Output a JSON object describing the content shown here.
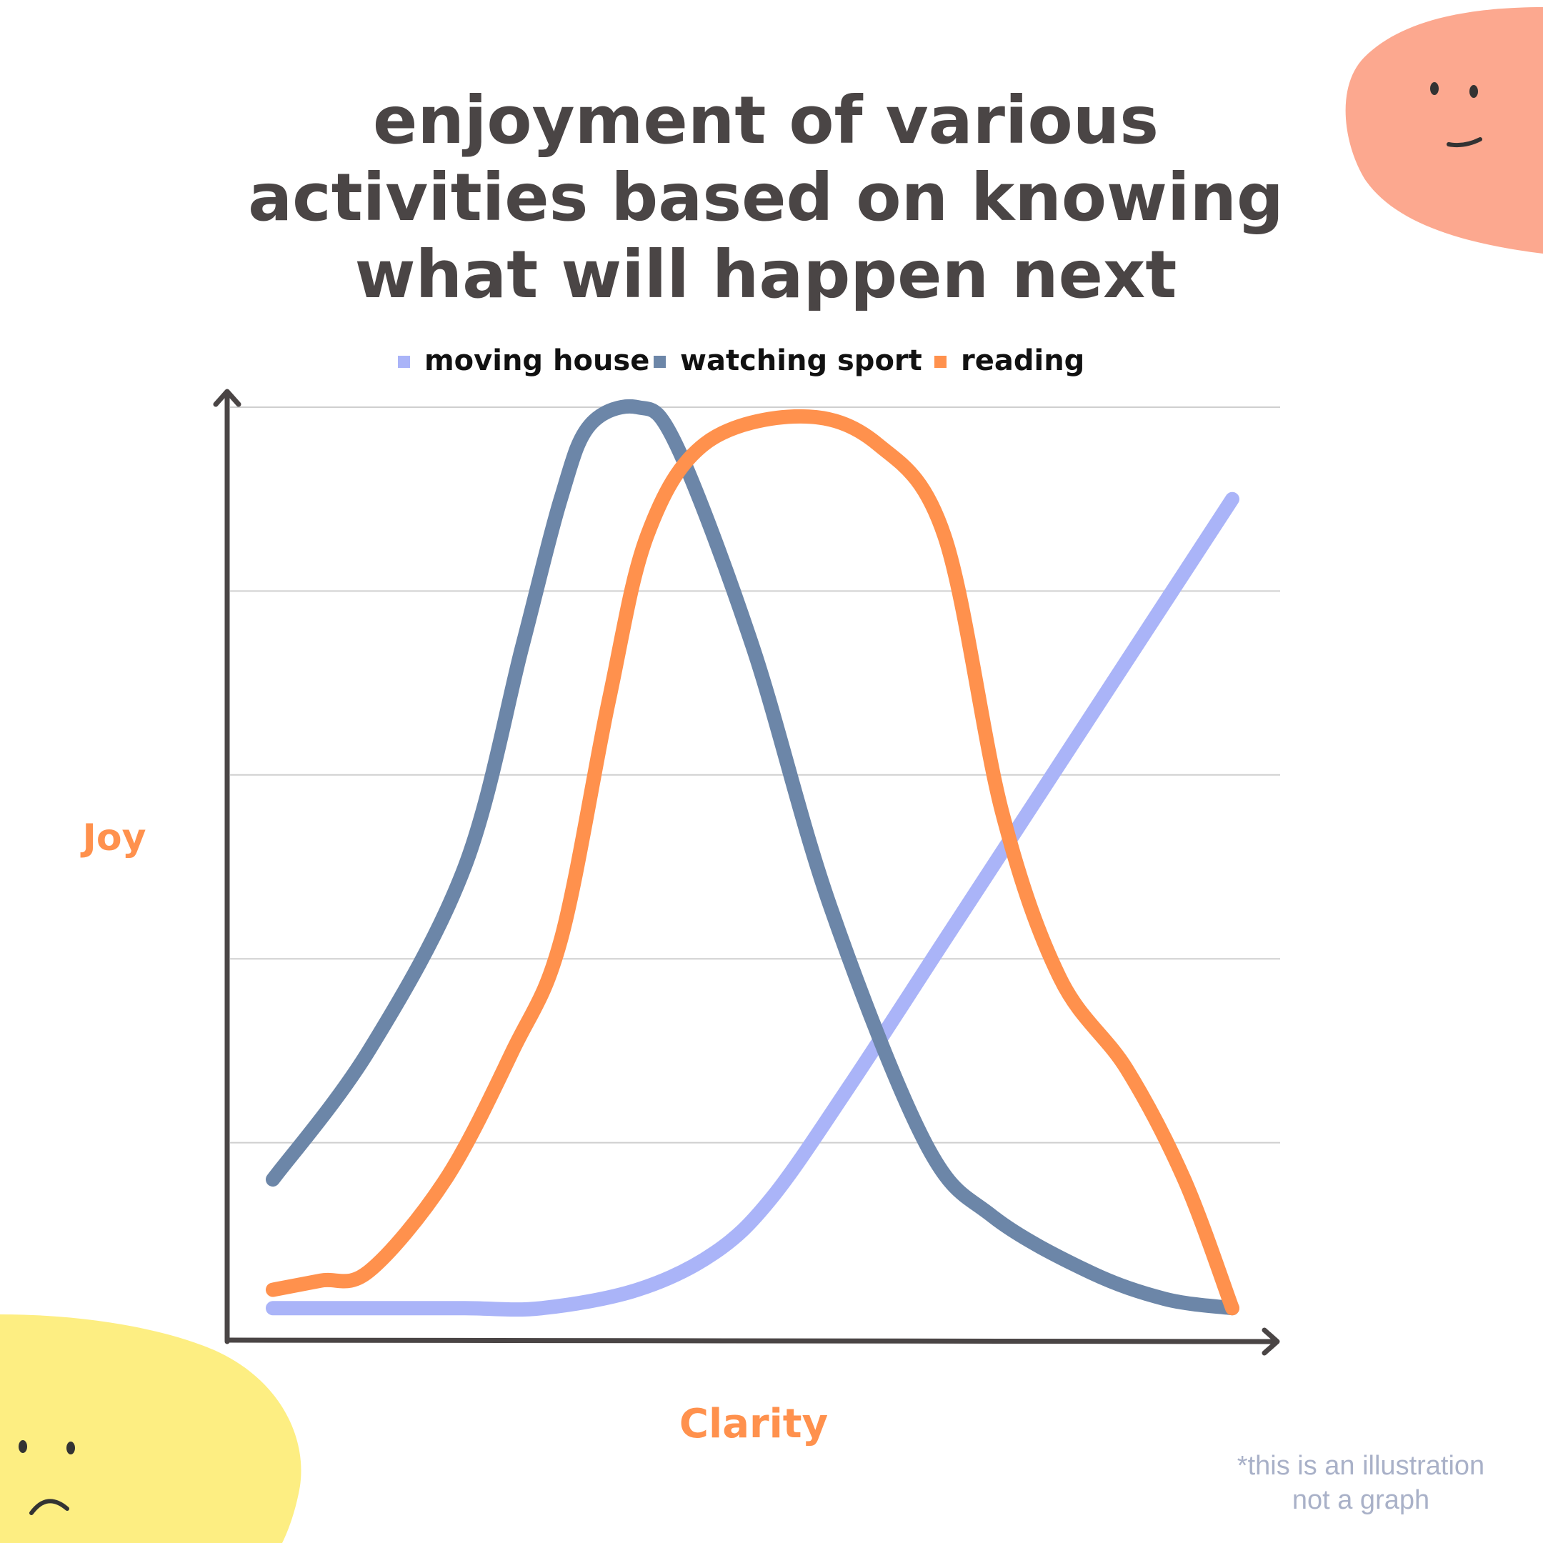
{
  "title": {
    "lines": [
      "enjoyment of various",
      "activities based on knowing",
      "what will happen next"
    ]
  },
  "note": {
    "lines": [
      "*this is an illustration",
      "not a graph"
    ]
  },
  "decor": {
    "top_blob_icon": "neutral-face-blob",
    "bottom_blob_icon": "sad-face-blob",
    "top_blob_color": "#fca88f",
    "bottom_blob_color": "#fdee82"
  },
  "chart_data": {
    "type": "line",
    "title": "enjoyment of various activities based on knowing what will happen next",
    "xlabel": "Clarity",
    "ylabel": "Joy",
    "xlim": [
      0,
      10
    ],
    "ylim": [
      0,
      5
    ],
    "grid": true,
    "legend": "top",
    "series": [
      {
        "name": "moving house",
        "color": "#aab4f8",
        "x": [
          0.0,
          1.0,
          2.0,
          2.8,
          3.8,
          4.6,
          5.2,
          6.0,
          7.0,
          8.0,
          9.0,
          10.0
        ],
        "y": [
          0.1,
          0.1,
          0.1,
          0.1,
          0.2,
          0.4,
          0.7,
          1.3,
          2.1,
          2.9,
          3.7,
          4.5
        ]
      },
      {
        "name": "watching sport",
        "color": "#6c86a8",
        "x": [
          0.0,
          1.0,
          2.0,
          2.6,
          3.0,
          3.3,
          3.8,
          4.2,
          5.0,
          5.8,
          6.8,
          7.5,
          8.5,
          9.3,
          10.0
        ],
        "y": [
          0.8,
          1.5,
          2.5,
          3.7,
          4.5,
          4.9,
          5.0,
          4.8,
          3.7,
          2.3,
          1.0,
          0.6,
          0.3,
          0.15,
          0.1
        ]
      },
      {
        "name": "reading",
        "color": "#ff914d",
        "x": [
          0.0,
          0.5,
          1.0,
          1.8,
          2.5,
          3.0,
          3.5,
          3.9,
          4.5,
          5.5,
          6.3,
          7.0,
          7.6,
          8.2,
          8.9,
          9.5,
          10.0
        ],
        "y": [
          0.2,
          0.25,
          0.3,
          0.8,
          1.5,
          2.1,
          3.4,
          4.3,
          4.8,
          4.95,
          4.8,
          4.3,
          2.8,
          1.9,
          1.4,
          0.8,
          0.1
        ]
      }
    ]
  }
}
